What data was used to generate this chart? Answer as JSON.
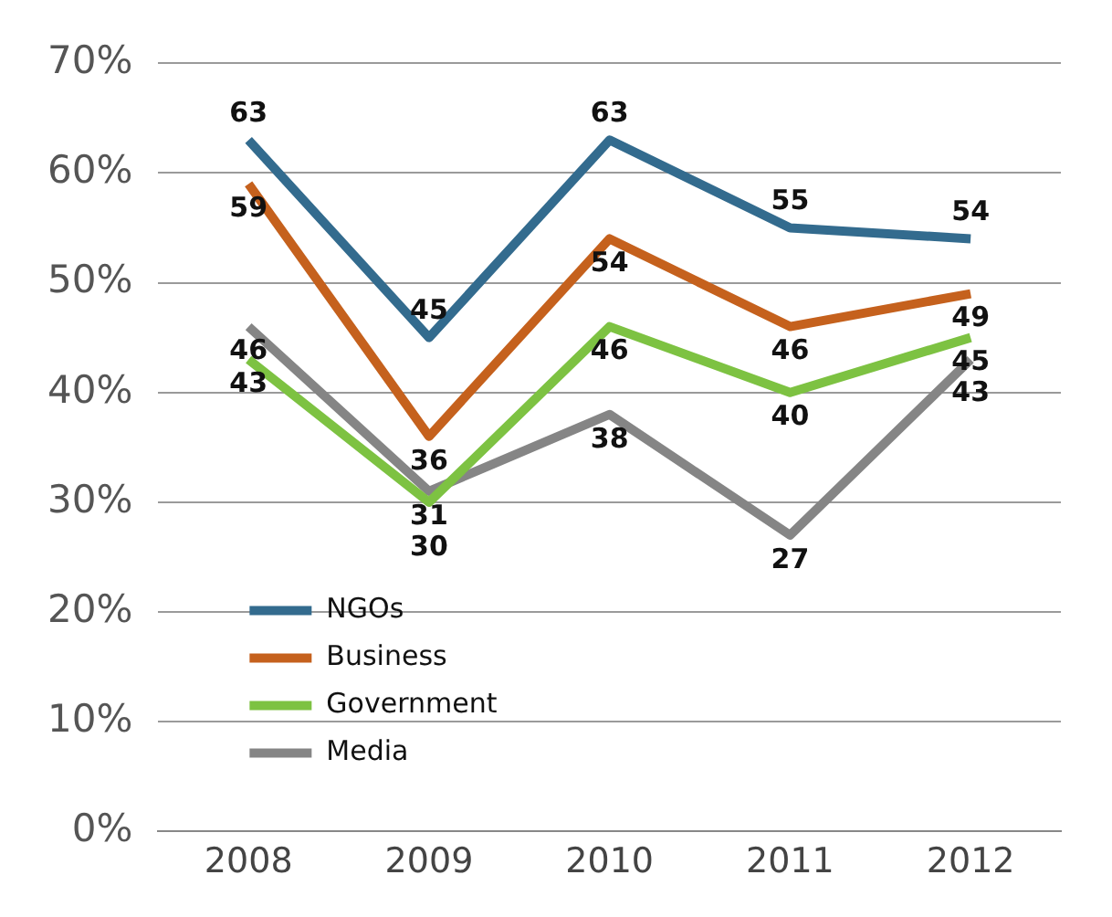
{
  "chart_data": {
    "type": "line",
    "categories": [
      "2008",
      "2009",
      "2010",
      "2011",
      "2012"
    ],
    "series": [
      {
        "name": "NGOs",
        "color": "#336b8e",
        "values": [
          63,
          45,
          63,
          55,
          54
        ]
      },
      {
        "name": "Business",
        "color": "#c5611d",
        "values": [
          59,
          36,
          54,
          46,
          49
        ]
      },
      {
        "name": "Government",
        "color": "#7dc242",
        "values": [
          43,
          30,
          46,
          40,
          45
        ]
      },
      {
        "name": "Media",
        "color": "#858585",
        "values": [
          46,
          31,
          38,
          27,
          43
        ]
      }
    ],
    "ylim": [
      0,
      70
    ],
    "yticks": [
      {
        "value": 0,
        "label": "0%"
      },
      {
        "value": 10,
        "label": "10%"
      },
      {
        "value": 20,
        "label": "20%"
      },
      {
        "value": 30,
        "label": "30%"
      },
      {
        "value": 40,
        "label": "40%"
      },
      {
        "value": 50,
        "label": "50%"
      },
      {
        "value": 60,
        "label": "60%"
      },
      {
        "value": 70,
        "label": "70%"
      }
    ],
    "grid": "y",
    "legend": "bottom left",
    "data_labels": true,
    "marker": "none",
    "line_style": "solid"
  }
}
